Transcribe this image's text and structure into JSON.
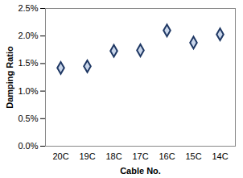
{
  "chart_data": {
    "type": "scatter",
    "xlabel": "Cable No.",
    "ylabel": "Damping Ratio",
    "categories": [
      "20C",
      "19C",
      "18C",
      "17C",
      "16C",
      "15C",
      "14C"
    ],
    "values": [
      1.42,
      1.45,
      1.73,
      1.74,
      2.1,
      1.88,
      2.03
    ],
    "color": "#1f3864",
    "marker": "diamond",
    "ylim": [
      0,
      2.5
    ],
    "yticks": [
      {
        "value": 0,
        "label": "0.0%"
      },
      {
        "value": 0.5,
        "label": "0.5%"
      },
      {
        "value": 1.0,
        "label": "1.0%"
      },
      {
        "value": 1.5,
        "label": "1.5%"
      },
      {
        "value": 2.0,
        "label": "2.0%"
      },
      {
        "value": 2.5,
        "label": "2.5%"
      }
    ],
    "grid": false
  }
}
